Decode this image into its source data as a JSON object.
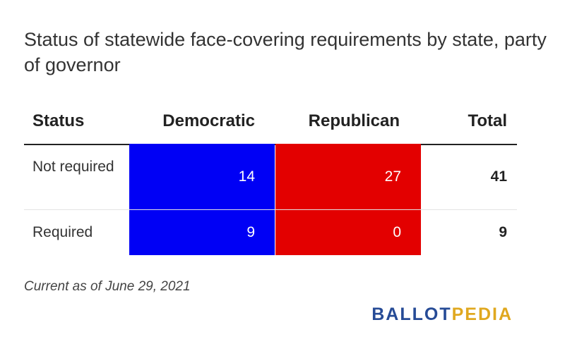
{
  "title": "Status of statewide face-covering requirements by state, party of governor",
  "chart_data": {
    "type": "table",
    "columns": [
      "Status",
      "Democratic",
      "Republican",
      "Total"
    ],
    "rows": [
      {
        "status": "Not required",
        "democratic": 14,
        "republican": 27,
        "total": 41
      },
      {
        "status": "Required",
        "democratic": 9,
        "republican": 0,
        "total": 9
      }
    ],
    "colors": {
      "democratic": "#0000f5",
      "republican": "#e30000"
    }
  },
  "note": "Current as of June 29, 2021",
  "logo": {
    "part1": "BALLOT",
    "part2": "PEDIA"
  }
}
